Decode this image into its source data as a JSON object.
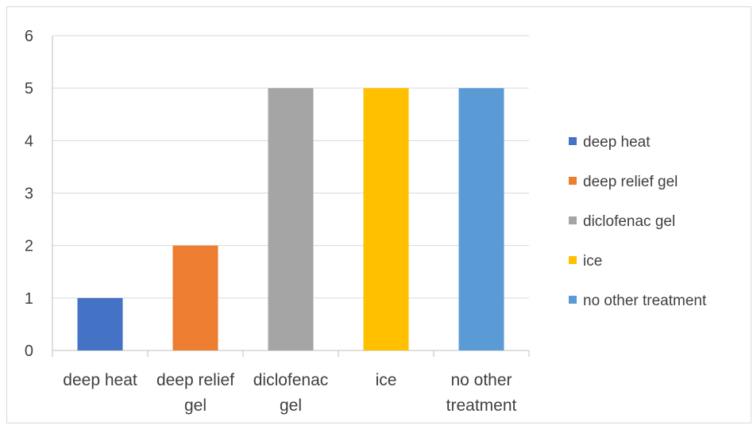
{
  "chart_data": {
    "type": "bar",
    "title": "",
    "xlabel": "",
    "ylabel": "",
    "categories": [
      [
        "deep heat"
      ],
      [
        "deep relief",
        "gel"
      ],
      [
        "diclofenac",
        "gel"
      ],
      [
        "ice"
      ],
      [
        "no other",
        "treatment"
      ]
    ],
    "values": [
      1,
      2,
      5,
      5,
      5
    ],
    "colors": [
      "#4472C4",
      "#ED7D31",
      "#A5A5A5",
      "#FFC000",
      "#5B9BD5"
    ],
    "ylim": [
      0,
      6
    ],
    "yticks": [
      0,
      1,
      2,
      3,
      4,
      5,
      6
    ],
    "grid": true,
    "legend": {
      "placement": "right",
      "entries": [
        "deep heat",
        "deep relief gel",
        "diclofenac gel",
        "ice",
        "no other treatment"
      ]
    }
  }
}
